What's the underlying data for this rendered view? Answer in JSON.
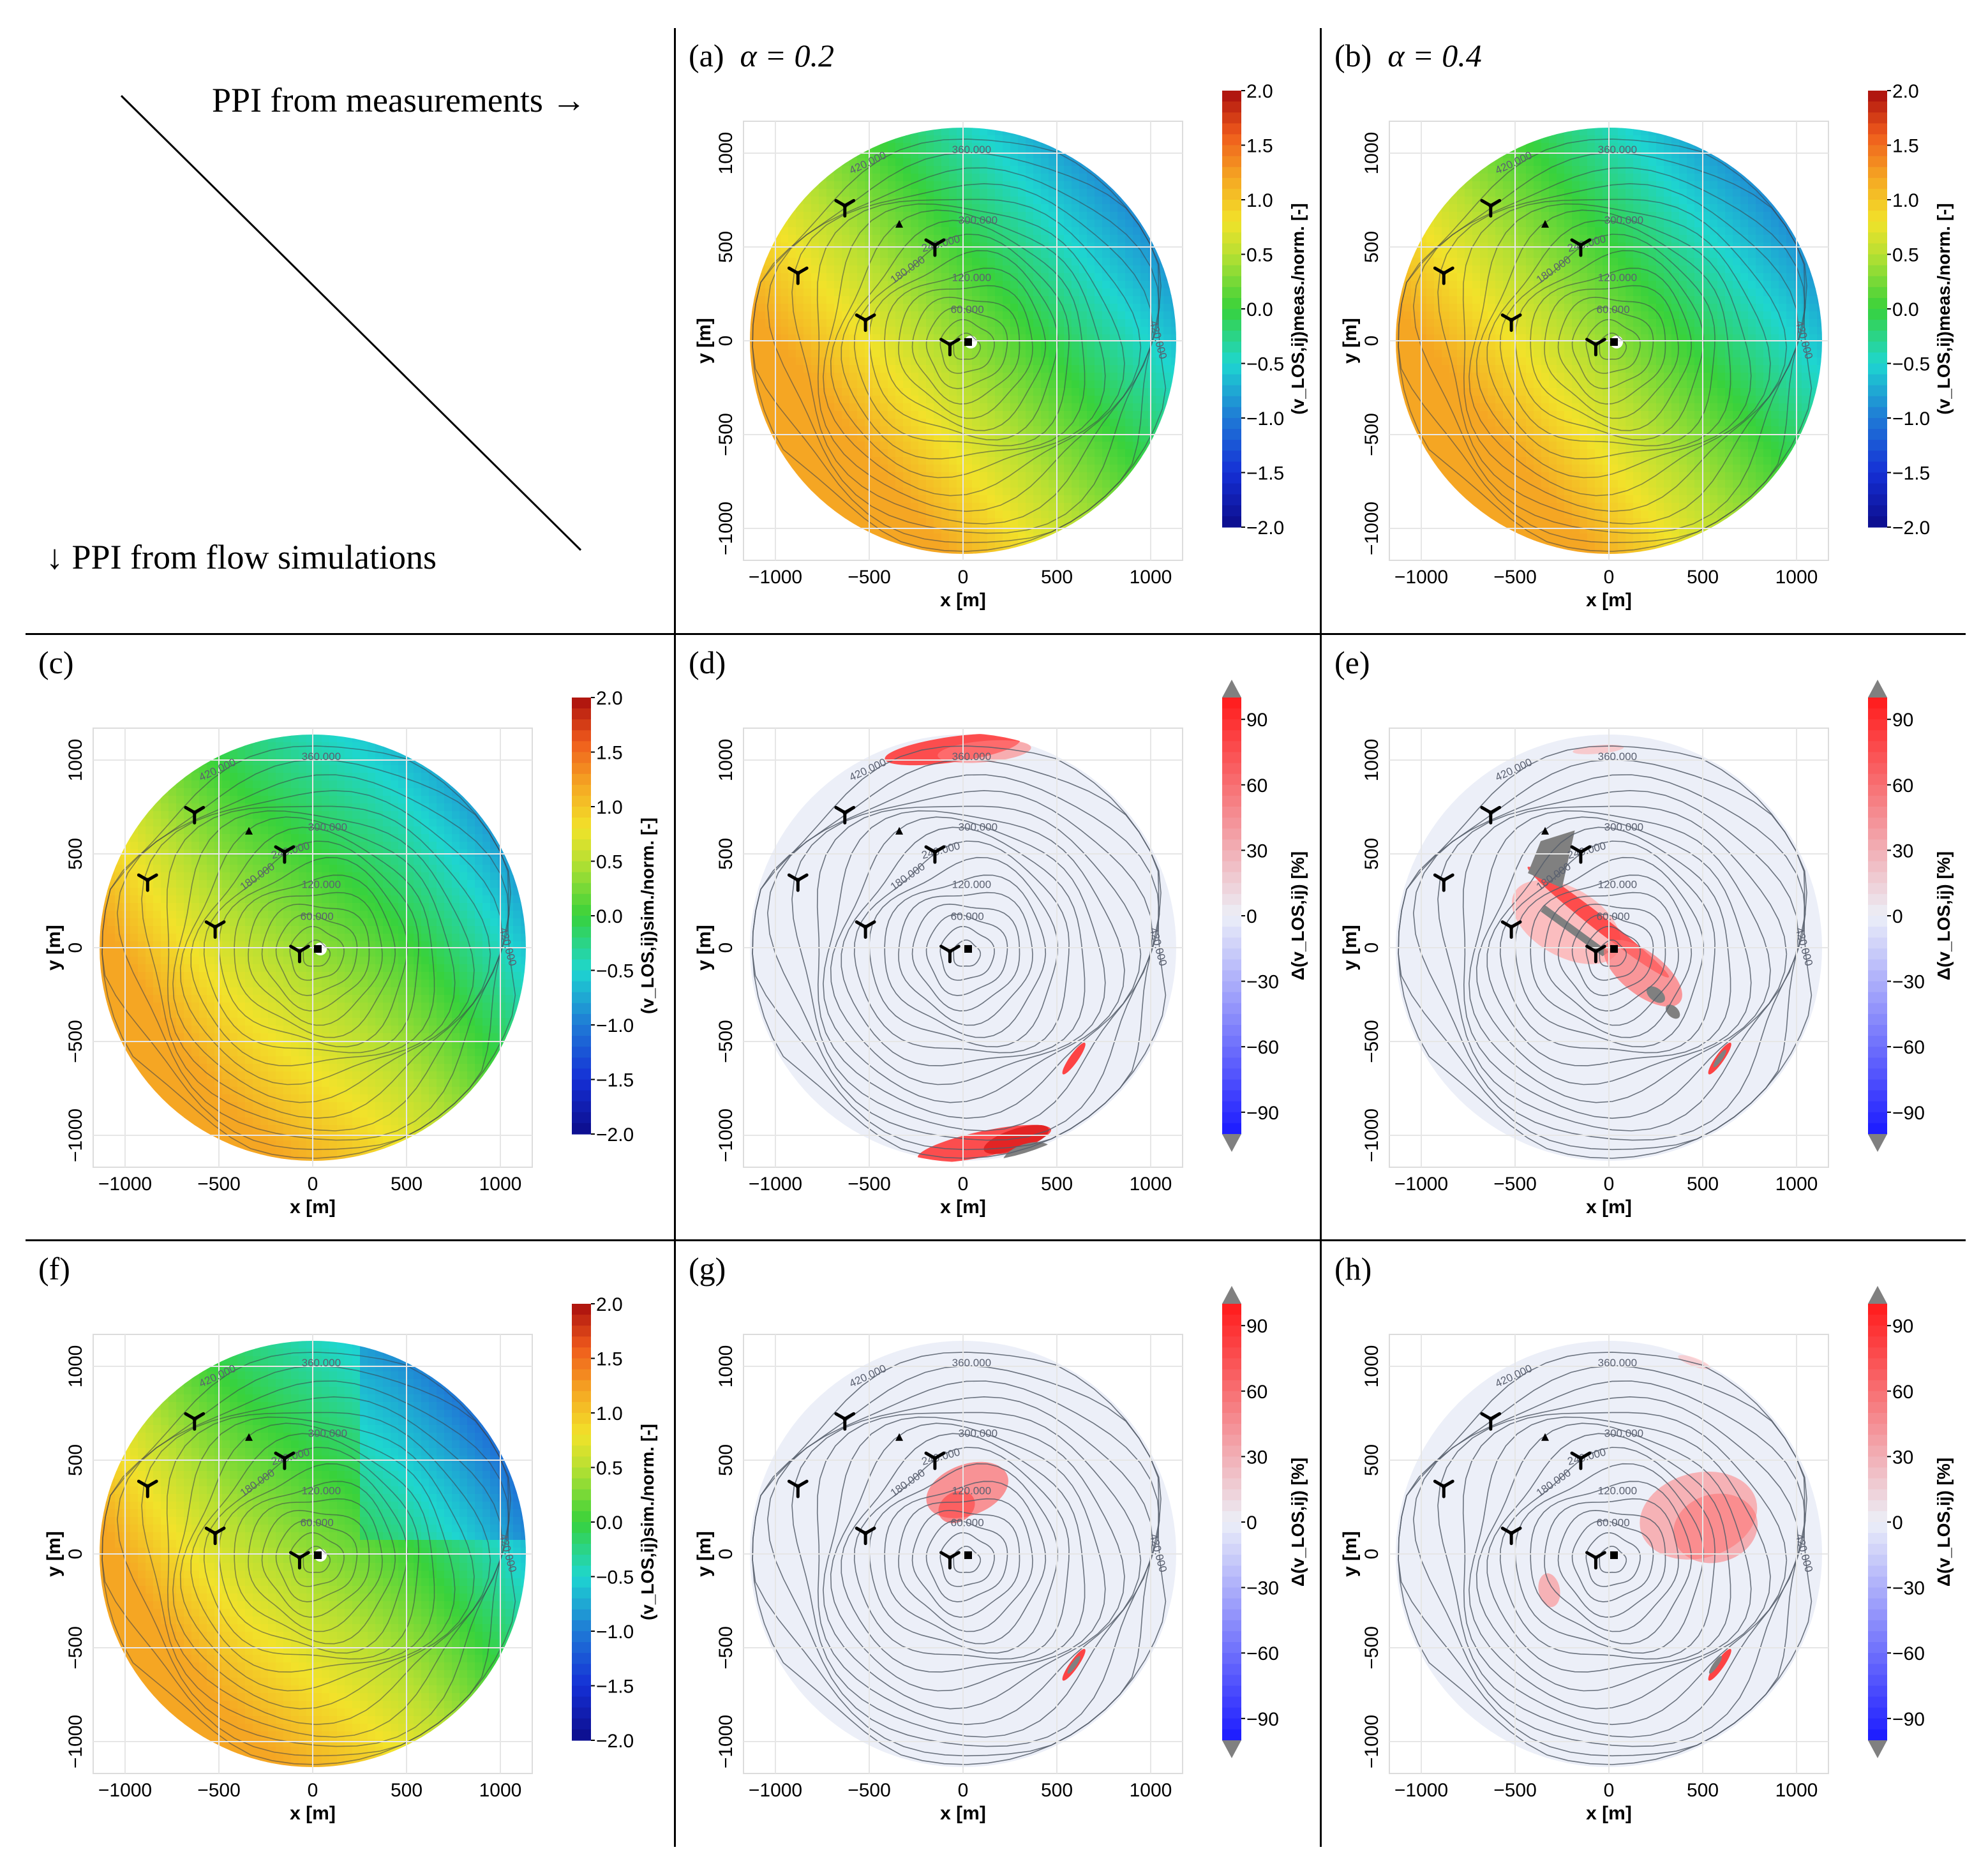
{
  "header": {
    "measurements_label": "PPI from measurements →",
    "simulations_label": "↓ PPI from flow simulations"
  },
  "colors": {
    "red": "#e51f1f",
    "orange": "#f5a623",
    "yellow": "#f2e22a",
    "green": "#38d23b",
    "cyan": "#1ed6d0",
    "blue": "#1f7ad6",
    "darkblue": "#1a1a9a",
    "diffbg": "#eceff8",
    "contour": "#555d6a",
    "grey": "#808080"
  },
  "icons": [
    "wind-turbine-icon",
    "lidar-square-icon",
    "mast-triangle-icon"
  ],
  "chart_data": [
    {
      "id": "a",
      "type": "heatmap",
      "panel_label": "(a)",
      "alpha_label": "α = 0.2",
      "xlabel": "x [m]",
      "ylabel": "y [m]",
      "xticks": [
        -1000,
        -500,
        0,
        500,
        1000
      ],
      "yticks": [
        -1000,
        -500,
        0,
        500,
        1000
      ],
      "xlim": [
        -1150,
        1150
      ],
      "ylim": [
        -1150,
        1150
      ],
      "colorbar": {
        "label": "(v_LOS,ij)meas./norm. [-]",
        "ticks": [
          2.0,
          1.5,
          1.0,
          0.5,
          0.0,
          -0.5,
          -1.0,
          -1.5,
          -2.0
        ],
        "range": [
          -2.0,
          2.0
        ]
      },
      "contour_labels": [
        "420.000",
        "360.000",
        "300.000",
        "240.000",
        "180.000",
        "120.000",
        "60.000"
      ],
      "variant": 0
    },
    {
      "id": "b",
      "type": "heatmap",
      "panel_label": "(b)",
      "alpha_label": "α = 0.4",
      "xlabel": "x [m]",
      "ylabel": "y [m]",
      "xticks": [
        -1000,
        -500,
        0,
        500,
        1000
      ],
      "yticks": [
        -1000,
        -500,
        0,
        500,
        1000
      ],
      "xlim": [
        -1150,
        1150
      ],
      "ylim": [
        -1150,
        1150
      ],
      "colorbar": {
        "label": "(v_LOS,ij)meas./norm. [-]",
        "ticks": [
          2.0,
          1.5,
          1.0,
          0.5,
          0.0,
          -0.5,
          -1.0,
          -1.5,
          -2.0
        ],
        "range": [
          -2.0,
          2.0
        ]
      },
      "contour_labels": [
        "420.000",
        "360.000",
        "300.000",
        "240.000",
        "180.000",
        "120.000",
        "60.000"
      ],
      "variant": 1
    },
    {
      "id": "c",
      "type": "heatmap",
      "panel_label": "(c)",
      "alpha_label": "",
      "xlabel": "x [m]",
      "ylabel": "y [m]",
      "xticks": [
        -1000,
        -500,
        0,
        500,
        1000
      ],
      "yticks": [
        -1000,
        -500,
        0,
        500,
        1000
      ],
      "xlim": [
        -1150,
        1150
      ],
      "ylim": [
        -1150,
        1150
      ],
      "colorbar": {
        "label": "(v_LOS,ij)sim./norm. [-]",
        "ticks": [
          2.0,
          1.5,
          1.0,
          0.5,
          0.0,
          -0.5,
          -1.0,
          -1.5,
          -2.0
        ],
        "range": [
          -2.0,
          2.0
        ]
      },
      "contour_labels": [
        "420.000",
        "360.000",
        "300.000",
        "240.000",
        "180.000",
        "120.000",
        "60.000"
      ],
      "variant": 2
    },
    {
      "id": "d",
      "type": "heatmap",
      "panel_label": "(d)",
      "alpha_label": "",
      "xlabel": "x [m]",
      "ylabel": "y [m]",
      "xticks": [
        -1000,
        -500,
        0,
        500,
        1000
      ],
      "yticks": [
        -1000,
        -500,
        0,
        500,
        1000
      ],
      "xlim": [
        -1150,
        1150
      ],
      "ylim": [
        -1150,
        1150
      ],
      "colorbar": {
        "label": "Δ(v_LOS,ij) [%]",
        "ticks": [
          90,
          60,
          30,
          0,
          -30,
          -60,
          -90
        ],
        "range": [
          -100,
          100
        ]
      },
      "contour_labels": [
        "420.000",
        "360.000",
        "300.000",
        "240.000",
        "180.000",
        "120.000",
        "60.000"
      ],
      "patches": "d"
    },
    {
      "id": "e",
      "type": "heatmap",
      "panel_label": "(e)",
      "alpha_label": "",
      "xlabel": "x [m]",
      "ylabel": "y [m]",
      "xticks": [
        -1000,
        -500,
        0,
        500,
        1000
      ],
      "yticks": [
        -1000,
        -500,
        0,
        500,
        1000
      ],
      "xlim": [
        -1150,
        1150
      ],
      "ylim": [
        -1150,
        1150
      ],
      "colorbar": {
        "label": "Δ(v_LOS,ij) [%]",
        "ticks": [
          90,
          60,
          30,
          0,
          -30,
          -60,
          -90
        ],
        "range": [
          -100,
          100
        ]
      },
      "contour_labels": [
        "420.000",
        "360.000",
        "300.000",
        "240.000",
        "180.000",
        "120.000",
        "60.000"
      ],
      "patches": "e"
    },
    {
      "id": "f",
      "type": "heatmap",
      "panel_label": "(f)",
      "alpha_label": "",
      "xlabel": "x [m]",
      "ylabel": "y [m]",
      "xticks": [
        -1000,
        -500,
        0,
        500,
        1000
      ],
      "yticks": [
        -1000,
        -500,
        0,
        500,
        1000
      ],
      "xlim": [
        -1150,
        1150
      ],
      "ylim": [
        -1150,
        1150
      ],
      "colorbar": {
        "label": "(v_LOS,ij)sim./norm. [-]",
        "ticks": [
          2.0,
          1.5,
          1.0,
          0.5,
          0.0,
          -0.5,
          -1.0,
          -1.5,
          -2.0
        ],
        "range": [
          -2.0,
          2.0
        ]
      },
      "contour_labels": [
        "420.000",
        "360.000",
        "300.000",
        "240.000",
        "180.000",
        "120.000",
        "60.000"
      ],
      "variant": 3
    },
    {
      "id": "g",
      "type": "heatmap",
      "panel_label": "(g)",
      "alpha_label": "",
      "xlabel": "x [m]",
      "ylabel": "y [m]",
      "xticks": [
        -1000,
        -500,
        0,
        500,
        1000
      ],
      "yticks": [
        -1000,
        -500,
        0,
        500,
        1000
      ],
      "xlim": [
        -1150,
        1150
      ],
      "ylim": [
        -1150,
        1150
      ],
      "colorbar": {
        "label": "Δ(v_LOS,ij) [%]",
        "ticks": [
          90,
          60,
          30,
          0,
          -30,
          -60,
          -90
        ],
        "range": [
          -100,
          100
        ]
      },
      "contour_labels": [
        "420.000",
        "360.000",
        "300.000",
        "240.000",
        "180.000",
        "120.000",
        "60.000"
      ],
      "patches": "g"
    },
    {
      "id": "h",
      "type": "heatmap",
      "panel_label": "(h)",
      "alpha_label": "",
      "xlabel": "x [m]",
      "ylabel": "y [m]",
      "xticks": [
        -1000,
        -500,
        0,
        500,
        1000
      ],
      "yticks": [
        -1000,
        -500,
        0,
        500,
        1000
      ],
      "xlim": [
        -1150,
        1150
      ],
      "ylim": [
        -1150,
        1150
      ],
      "colorbar": {
        "label": "Δ(v_LOS,ij) [%]",
        "ticks": [
          90,
          60,
          30,
          0,
          -30,
          -60,
          -90
        ],
        "range": [
          -100,
          100
        ]
      },
      "contour_labels": [
        "420.000",
        "360.000",
        "300.000",
        "240.000",
        "180.000",
        "120.000",
        "60.000"
      ],
      "patches": "h"
    }
  ],
  "turbines": [
    [
      -630,
      720
    ],
    [
      -880,
      360
    ],
    [
      -150,
      510
    ],
    [
      -520,
      110
    ],
    [
      -70,
      -20
    ]
  ],
  "lidar": [
    0,
    -10
  ],
  "mast": [
    -340,
    620
  ]
}
